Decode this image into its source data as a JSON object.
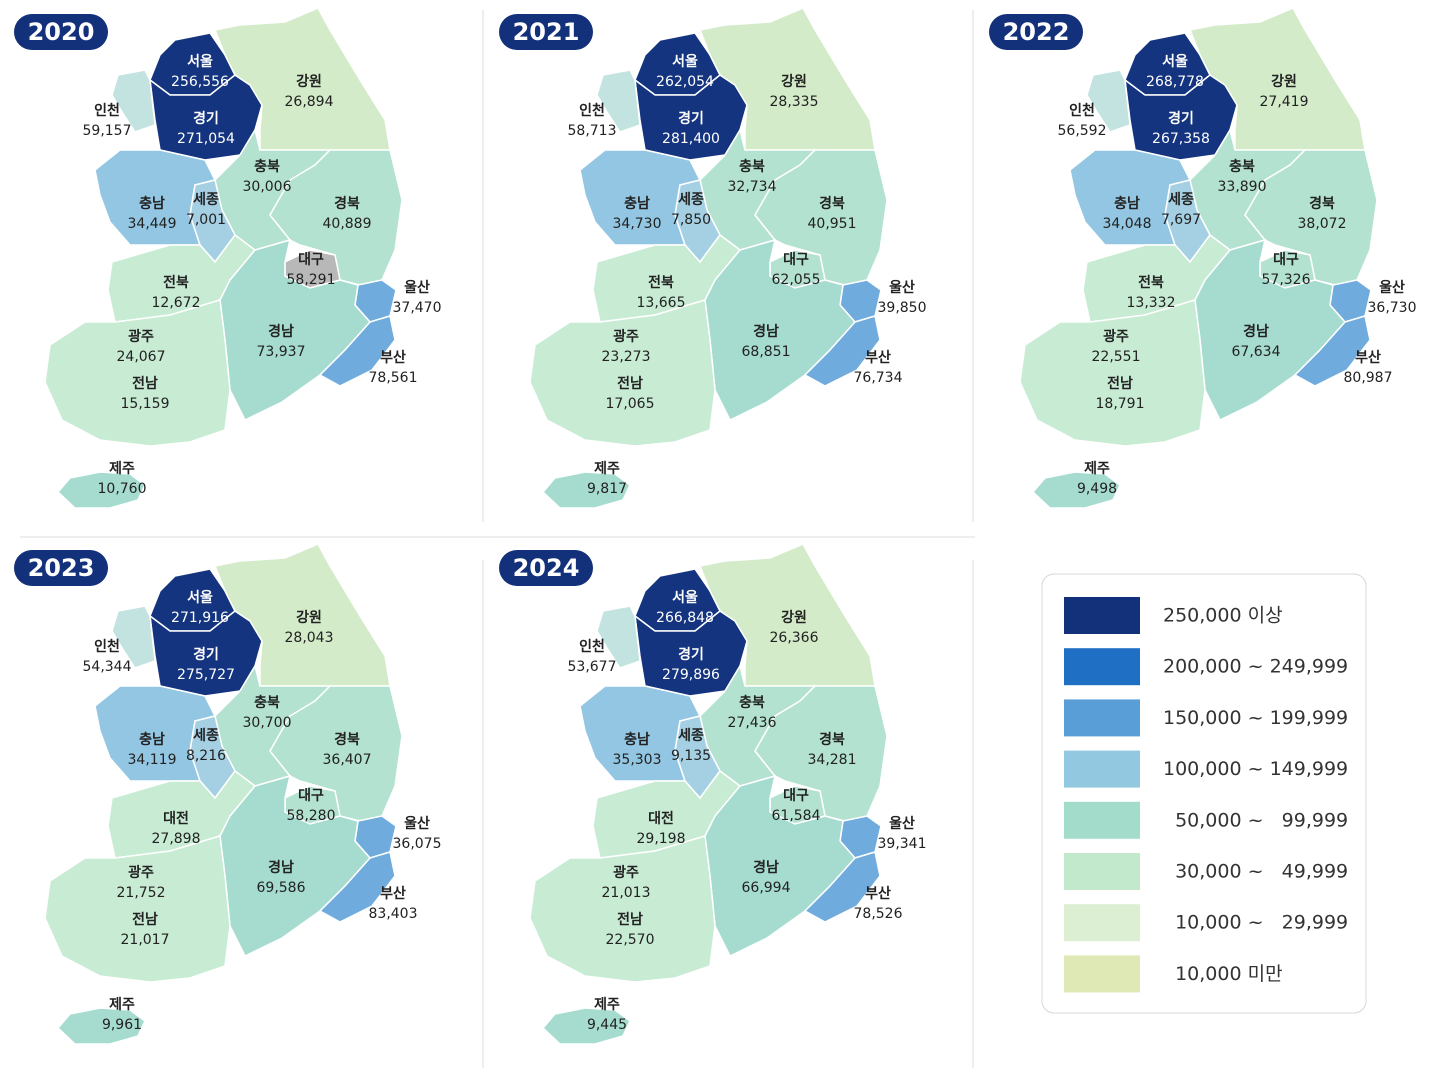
{
  "panels": [
    {
      "year": "2020",
      "regions": [
        {
          "name": "서울",
          "value": "256,556",
          "color": "#14347f"
        },
        {
          "name": "경기",
          "value": "271,054",
          "color": "#14347f"
        },
        {
          "name": "강원",
          "value": "26,894",
          "color": "#d3ebc9"
        },
        {
          "name": "인천",
          "value": "59,157",
          "color": "#c2e3e0"
        },
        {
          "name": "충북",
          "value": "30,006",
          "color": "#b3e2d0"
        },
        {
          "name": "충남",
          "value": "34,449",
          "color": "#93c6e2"
        },
        {
          "name": "세종",
          "value": "7,001",
          "color": "#a5d0e4"
        },
        {
          "name": "경북",
          "value": "40,889",
          "color": "#b3e2d0"
        },
        {
          "name": "대구",
          "value": "58,291",
          "color": "#b8b8b8"
        },
        {
          "name": "전북",
          "value": "12,672",
          "color": "#c8ebd4"
        },
        {
          "name": "울산",
          "value": "37,470",
          "color": "#70abde"
        },
        {
          "name": "광주",
          "value": "24,067",
          "color": "#c8ebd4"
        },
        {
          "name": "경남",
          "value": "73,937",
          "color": "#a6dccf"
        },
        {
          "name": "부산",
          "value": "78,561",
          "color": "#70abde"
        },
        {
          "name": "전남",
          "value": "15,159",
          "color": "#c8ebd4"
        },
        {
          "name": "제주",
          "value": "10,760",
          "color": "#a6dccf"
        }
      ]
    },
    {
      "year": "2021",
      "regions": [
        {
          "name": "서울",
          "value": "262,054",
          "color": "#14347f"
        },
        {
          "name": "경기",
          "value": "281,400",
          "color": "#14347f"
        },
        {
          "name": "강원",
          "value": "28,335",
          "color": "#d3ebc9"
        },
        {
          "name": "인천",
          "value": "58,713",
          "color": "#c2e3e0"
        },
        {
          "name": "충북",
          "value": "32,734",
          "color": "#b3e2d0"
        },
        {
          "name": "충남",
          "value": "34,730",
          "color": "#93c6e2"
        },
        {
          "name": "세종",
          "value": "7,850",
          "color": "#a5d0e4"
        },
        {
          "name": "경북",
          "value": "40,951",
          "color": "#b3e2d0"
        },
        {
          "name": "대구",
          "value": "62,055",
          "color": "#b3e2d0"
        },
        {
          "name": "전북",
          "value": "13,665",
          "color": "#c8ebd4"
        },
        {
          "name": "울산",
          "value": "39,850",
          "color": "#70abde"
        },
        {
          "name": "광주",
          "value": "23,273",
          "color": "#c8ebd4"
        },
        {
          "name": "경남",
          "value": "68,851",
          "color": "#a6dccf"
        },
        {
          "name": "부산",
          "value": "76,734",
          "color": "#70abde"
        },
        {
          "name": "전남",
          "value": "17,065",
          "color": "#c8ebd4"
        },
        {
          "name": "제주",
          "value": "9,817",
          "color": "#a6dccf"
        }
      ]
    },
    {
      "year": "2022",
      "regions": [
        {
          "name": "서울",
          "value": "268,778",
          "color": "#14347f"
        },
        {
          "name": "경기",
          "value": "267,358",
          "color": "#14347f"
        },
        {
          "name": "강원",
          "value": "27,419",
          "color": "#d3ebc9"
        },
        {
          "name": "인천",
          "value": "56,592",
          "color": "#c2e3e0"
        },
        {
          "name": "충북",
          "value": "33,890",
          "color": "#b3e2d0"
        },
        {
          "name": "충남",
          "value": "34,048",
          "color": "#93c6e2"
        },
        {
          "name": "세종",
          "value": "7,697",
          "color": "#a5d0e4"
        },
        {
          "name": "경북",
          "value": "38,072",
          "color": "#b3e2d0"
        },
        {
          "name": "대구",
          "value": "57,326",
          "color": "#b3e2d0"
        },
        {
          "name": "전북",
          "value": "13,332",
          "color": "#c8ebd4"
        },
        {
          "name": "울산",
          "value": "36,730",
          "color": "#70abde"
        },
        {
          "name": "광주",
          "value": "22,551",
          "color": "#c8ebd4"
        },
        {
          "name": "경남",
          "value": "67,634",
          "color": "#a6dccf"
        },
        {
          "name": "부산",
          "value": "80,987",
          "color": "#70abde"
        },
        {
          "name": "전남",
          "value": "18,791",
          "color": "#c8ebd4"
        },
        {
          "name": "제주",
          "value": "9,498",
          "color": "#a6dccf"
        }
      ]
    },
    {
      "year": "2023",
      "regions": [
        {
          "name": "서울",
          "value": "271,916",
          "color": "#14347f"
        },
        {
          "name": "경기",
          "value": "275,727",
          "color": "#14347f"
        },
        {
          "name": "강원",
          "value": "28,043",
          "color": "#d3ebc9"
        },
        {
          "name": "인천",
          "value": "54,344",
          "color": "#c2e3e0"
        },
        {
          "name": "충북",
          "value": "30,700",
          "color": "#b3e2d0"
        },
        {
          "name": "충남",
          "value": "34,119",
          "color": "#93c6e2"
        },
        {
          "name": "세종",
          "value": "8,216",
          "color": "#a5d0e4"
        },
        {
          "name": "경북",
          "value": "36,407",
          "color": "#b3e2d0"
        },
        {
          "name": "대구",
          "value": "58,280",
          "color": "#b3e2d0"
        },
        {
          "name": "대전",
          "value": "27,898",
          "color": "#c8ebd4"
        },
        {
          "name": "울산",
          "value": "36,075",
          "color": "#70abde"
        },
        {
          "name": "광주",
          "value": "21,752",
          "color": "#c8ebd4"
        },
        {
          "name": "경남",
          "value": "69,586",
          "color": "#a6dccf"
        },
        {
          "name": "부산",
          "value": "83,403",
          "color": "#70abde"
        },
        {
          "name": "전남",
          "value": "21,017",
          "color": "#c8ebd4"
        },
        {
          "name": "제주",
          "value": "9,961",
          "color": "#a6dccf"
        }
      ]
    },
    {
      "year": "2024",
      "regions": [
        {
          "name": "서울",
          "value": "266,848",
          "color": "#14347f"
        },
        {
          "name": "경기",
          "value": "279,896",
          "color": "#14347f"
        },
        {
          "name": "강원",
          "value": "26,366",
          "color": "#d3ebc9"
        },
        {
          "name": "인천",
          "value": "53,677",
          "color": "#c2e3e0"
        },
        {
          "name": "충북",
          "value": "27,436",
          "color": "#b3e2d0"
        },
        {
          "name": "충남",
          "value": "35,303",
          "color": "#93c6e2"
        },
        {
          "name": "세종",
          "value": "9,135",
          "color": "#a5d0e4"
        },
        {
          "name": "경북",
          "value": "34,281",
          "color": "#b3e2d0"
        },
        {
          "name": "대구",
          "value": "61,584",
          "color": "#b3e2d0"
        },
        {
          "name": "대전",
          "value": "29,198",
          "color": "#c8ebd4"
        },
        {
          "name": "울산",
          "value": "39,341",
          "color": "#70abde"
        },
        {
          "name": "광주",
          "value": "21,013",
          "color": "#c8ebd4"
        },
        {
          "name": "경남",
          "value": "66,994",
          "color": "#a6dccf"
        },
        {
          "name": "부산",
          "value": "78,526",
          "color": "#70abde"
        },
        {
          "name": "전남",
          "value": "22,570",
          "color": "#c8ebd4"
        },
        {
          "name": "제주",
          "value": "9,445",
          "color": "#a6dccf"
        }
      ]
    }
  ],
  "legend": {
    "items": [
      {
        "label": "250,000 이상",
        "color": "#13307a"
      },
      {
        "label": "200,000 ~ 249,999",
        "color": "#1f6fc4"
      },
      {
        "label": "150,000 ~ 199,999",
        "color": "#5a9ed8"
      },
      {
        "label": "100,000 ~ 149,999",
        "color": "#93c9e0"
      },
      {
        "label": "  50,000 ~   99,999",
        "color": "#a3dccb"
      },
      {
        "label": "  30,000 ~   49,999",
        "color": "#c3e9cc"
      },
      {
        "label": "  10,000 ~   29,999",
        "color": "#dcefd3"
      },
      {
        "label": "  10,000 미만",
        "color": "#dfe9b5"
      }
    ]
  }
}
